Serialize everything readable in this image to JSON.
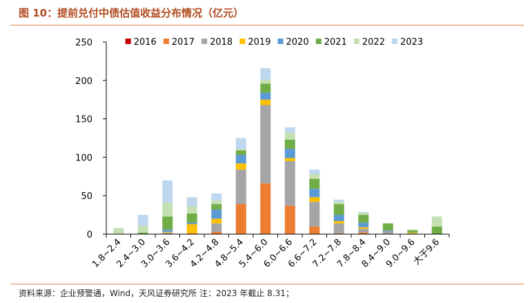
{
  "figure": {
    "title": "图 10：提前兑付中债估值收益分布情况（亿元）",
    "source": "资料来源：企业预警通，Wind，天风证券研究所   注：2023 年截止 8.31；"
  },
  "chart_data": {
    "type": "bar",
    "stacked": true,
    "categories": [
      "1.8~2.4",
      "2.4~3.0",
      "3.0~3.6",
      "3.6~4.2",
      "4.2~4.8",
      "4.8~5.4",
      "5.4~6.0",
      "6.0~6.6",
      "6.6~7.2",
      "7.2~7.8",
      "7.8~8.4",
      "8.4~9.0",
      "9.0~9.6",
      "大于9.6"
    ],
    "ylim": [
      0,
      250
    ],
    "yticks": [
      0,
      50,
      100,
      150,
      200,
      250
    ],
    "legend_position": "top",
    "series": [
      {
        "name": "2016",
        "color": "#c00000",
        "values": [
          0,
          0,
          0,
          0,
          0,
          0,
          0,
          0,
          0,
          0,
          0,
          0,
          0,
          0
        ]
      },
      {
        "name": "2017",
        "color": "#ed7d31",
        "values": [
          0,
          0,
          0,
          1,
          3,
          39,
          66,
          37,
          10,
          1,
          2,
          0,
          0,
          0
        ]
      },
      {
        "name": "2018",
        "color": "#a5a5a5",
        "values": [
          0,
          0,
          2,
          0,
          11,
          45,
          102,
          58,
          32,
          13,
          5,
          4,
          1,
          0
        ]
      },
      {
        "name": "2019",
        "color": "#ffc000",
        "values": [
          0,
          0,
          1,
          12,
          6,
          8,
          7,
          4,
          6,
          3,
          2,
          0,
          1,
          0
        ]
      },
      {
        "name": "2020",
        "color": "#5b9bd5",
        "values": [
          0,
          0,
          3,
          2,
          12,
          11,
          9,
          12,
          11,
          8,
          6,
          1,
          0,
          0
        ]
      },
      {
        "name": "2021",
        "color": "#70ad47",
        "values": [
          0,
          2,
          17,
          12,
          7,
          6,
          12,
          12,
          13,
          14,
          10,
          9,
          3,
          10
        ]
      },
      {
        "name": "2022",
        "color": "#c5e0b4",
        "values": [
          8,
          9,
          18,
          9,
          5,
          2,
          5,
          9,
          6,
          3,
          3,
          0,
          1,
          13
        ]
      },
      {
        "name": "2023",
        "color": "#bdd7ee",
        "values": [
          0,
          14,
          29,
          12,
          9,
          14,
          15,
          7,
          6,
          3,
          1,
          0,
          0,
          0
        ]
      }
    ]
  }
}
